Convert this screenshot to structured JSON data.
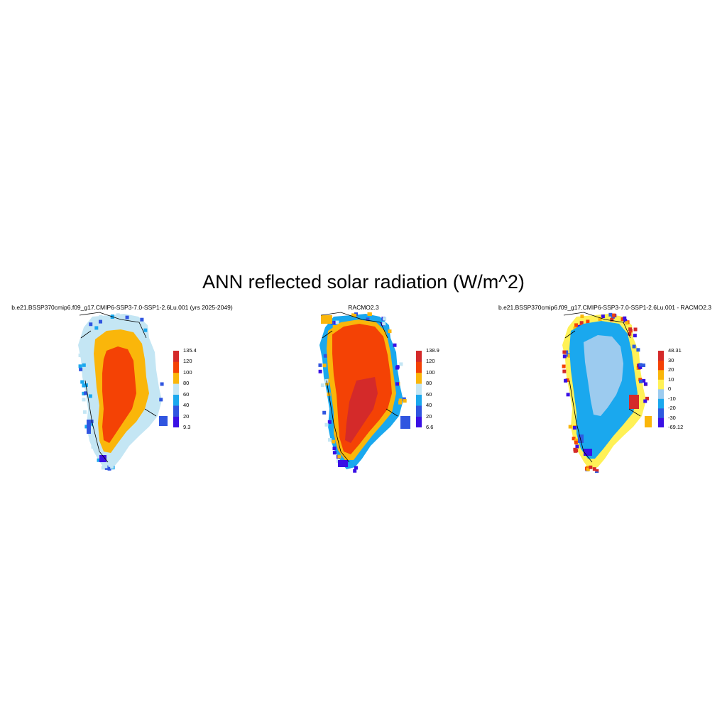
{
  "title": "ANN reflected solar radiation (W/m^2)",
  "colors": {
    "abs": [
      "#3a10e5",
      "#3055e0",
      "#1aa8ee",
      "#c4e6f4",
      "#fab60a",
      "#f44205",
      "#d42a2a"
    ],
    "diff": [
      "#3a10e5",
      "#2e5be0",
      "#1aa8ee",
      "#9ccbef",
      "#fff156",
      "#fab60a",
      "#f44205",
      "#d42a2a"
    ],
    "outline": "#000000"
  },
  "panels": [
    {
      "title": "b.e21.BSSP370cmip6.f09_g17.CMIP6-SSP3-7.0-SSP1-2.6Lu.001 (yrs 2025-2049)",
      "variant": "model",
      "colorbar": {
        "labels": [
          "135.4",
          "120",
          "100",
          "80",
          "60",
          "40",
          "20",
          "9.3"
        ],
        "palette": "abs"
      }
    },
    {
      "title": "RACMO2.3",
      "variant": "obs",
      "colorbar": {
        "labels": [
          "138.9",
          "120",
          "100",
          "80",
          "60",
          "40",
          "20",
          "6.6"
        ],
        "palette": "abs"
      }
    },
    {
      "title": "b.e21.BSSP370cmip6.f09_g17.CMIP6-SSP3-7.0-SSP1-2.6Lu.001 - RACMO2.3",
      "variant": "diff",
      "colorbar": {
        "labels": [
          "48.31",
          "30",
          "20",
          "10",
          "0",
          "-10",
          "-20",
          "-30",
          "-69.12"
        ],
        "palette": "diff"
      }
    }
  ]
}
